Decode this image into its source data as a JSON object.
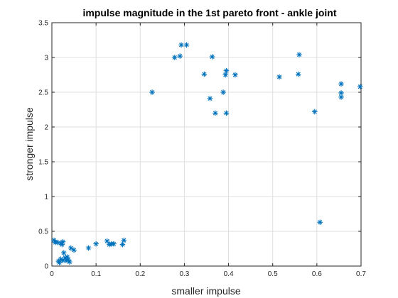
{
  "chart_data": {
    "type": "scatter",
    "title": "impulse magnitude in the 1st pareto front - ankle joint",
    "xlabel": "smaller impulse",
    "ylabel": "stronger impulse",
    "xlim": [
      0,
      0.7
    ],
    "ylim": [
      0,
      3.5
    ],
    "xticks": [
      "0",
      "0.1",
      "0.2",
      "0.3",
      "0.4",
      "0.5",
      "0.6",
      "0.7"
    ],
    "yticks": [
      "0",
      "0.5",
      "1",
      "1.5",
      "2",
      "2.5",
      "3",
      "3.5"
    ],
    "grid": true,
    "marker": "asterisk",
    "color": "#0072BD",
    "points": [
      [
        0.005,
        0.37
      ],
      [
        0.008,
        0.34
      ],
      [
        0.012,
        0.34
      ],
      [
        0.015,
        0.07
      ],
      [
        0.017,
        0.05
      ],
      [
        0.02,
        0.1
      ],
      [
        0.02,
        0.33
      ],
      [
        0.023,
        0.31
      ],
      [
        0.025,
        0.35
      ],
      [
        0.025,
        0.08
      ],
      [
        0.027,
        0.19
      ],
      [
        0.03,
        0.12
      ],
      [
        0.032,
        0.08
      ],
      [
        0.035,
        0.13
      ],
      [
        0.037,
        0.09
      ],
      [
        0.04,
        0.06
      ],
      [
        0.043,
        0.26
      ],
      [
        0.05,
        0.23
      ],
      [
        0.083,
        0.26
      ],
      [
        0.1,
        0.32
      ],
      [
        0.125,
        0.36
      ],
      [
        0.13,
        0.31
      ],
      [
        0.135,
        0.32
      ],
      [
        0.14,
        0.32
      ],
      [
        0.16,
        0.31
      ],
      [
        0.163,
        0.37
      ],
      [
        0.227,
        2.5
      ],
      [
        0.278,
        3.0
      ],
      [
        0.29,
        3.02
      ],
      [
        0.293,
        3.18
      ],
      [
        0.305,
        3.18
      ],
      [
        0.345,
        2.76
      ],
      [
        0.358,
        2.41
      ],
      [
        0.363,
        3.01
      ],
      [
        0.37,
        2.2
      ],
      [
        0.388,
        2.5
      ],
      [
        0.393,
        2.75
      ],
      [
        0.395,
        2.81
      ],
      [
        0.395,
        2.2
      ],
      [
        0.415,
        2.75
      ],
      [
        0.515,
        2.72
      ],
      [
        0.558,
        2.76
      ],
      [
        0.56,
        3.04
      ],
      [
        0.595,
        2.22
      ],
      [
        0.607,
        0.63
      ],
      [
        0.655,
        2.62
      ],
      [
        0.655,
        2.49
      ],
      [
        0.655,
        2.43
      ],
      [
        0.698,
        2.58
      ]
    ]
  }
}
